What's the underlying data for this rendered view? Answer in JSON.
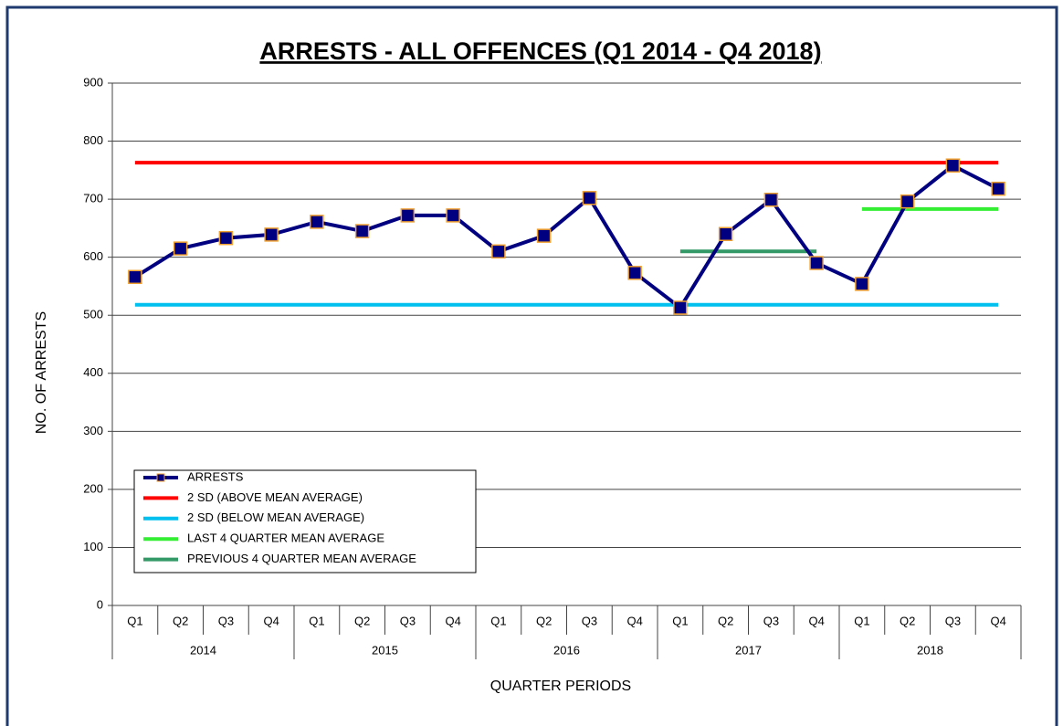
{
  "chart_data": {
    "type": "line",
    "title": "ARRESTS - ALL OFFENCES (Q1 2014 - Q4 2018)",
    "x_label": "QUARTER PERIODS",
    "y_label": "NO. OF ARRESTS",
    "categories": [
      "Q1",
      "Q2",
      "Q3",
      "Q4",
      "Q1",
      "Q2",
      "Q3",
      "Q4",
      "Q1",
      "Q2",
      "Q3",
      "Q4",
      "Q1",
      "Q2",
      "Q3",
      "Q4",
      "Q1",
      "Q2",
      "Q3",
      "Q4"
    ],
    "groups": [
      "2014",
      "2015",
      "2016",
      "2017",
      "2018"
    ],
    "ylim": [
      0,
      900
    ],
    "yticks": [
      0,
      100,
      200,
      300,
      400,
      500,
      600,
      700,
      800,
      900
    ],
    "grid": true,
    "legend": "lower-left",
    "series": [
      {
        "name": "ARRESTS",
        "color": "#000080",
        "marker_color": "#f0a030",
        "marker": "square",
        "values": [
          566,
          615,
          633,
          639,
          661,
          645,
          672,
          672,
          610,
          637,
          702,
          573,
          513,
          640,
          699,
          590,
          554,
          696,
          758,
          718
        ]
      },
      {
        "name": "2 SD (ABOVE MEAN AVERAGE)",
        "color": "#ff0000",
        "values": [
          763,
          763,
          763,
          763,
          763,
          763,
          763,
          763,
          763,
          763,
          763,
          763,
          763,
          763,
          763,
          763,
          763,
          763,
          763,
          763
        ]
      },
      {
        "name": "2 SD (BELOW MEAN AVERAGE)",
        "color": "#00c0f0",
        "values": [
          518,
          518,
          518,
          518,
          518,
          518,
          518,
          518,
          518,
          518,
          518,
          518,
          518,
          518,
          518,
          518,
          518,
          518,
          518,
          518
        ]
      },
      {
        "name": "LAST 4 QUARTER MEAN AVERAGE",
        "color": "#33ee33",
        "values": [
          null,
          null,
          null,
          null,
          null,
          null,
          null,
          null,
          null,
          null,
          null,
          null,
          null,
          null,
          null,
          null,
          683,
          683,
          683,
          683
        ]
      },
      {
        "name": "PREVIOUS 4 QUARTER MEAN AVERAGE",
        "color": "#339966",
        "values": [
          null,
          null,
          null,
          null,
          null,
          null,
          null,
          null,
          null,
          null,
          null,
          null,
          610,
          610,
          610,
          610,
          null,
          null,
          null,
          null
        ]
      }
    ]
  }
}
